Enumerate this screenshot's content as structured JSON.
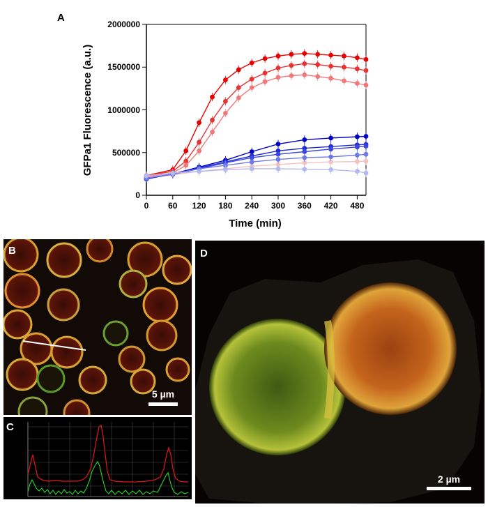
{
  "panels": {
    "a": "A",
    "b": "B",
    "c": "C",
    "d": "D"
  },
  "scale_bars": {
    "b": "5 µm",
    "d": "2 µm"
  },
  "chart_data": {
    "type": "line",
    "title": "",
    "xlabel": "Time (min)",
    "ylabel": "GFPa1 Fluorescence (a.u.)",
    "xlim": [
      0,
      500
    ],
    "ylim": [
      0,
      2000000
    ],
    "xticks": [
      "0",
      "60",
      "120",
      "180",
      "240",
      "300",
      "360",
      "420",
      "480"
    ],
    "yticks": [
      "0",
      "500000",
      "1000000",
      "1500000",
      "2000000"
    ],
    "series": [
      {
        "name": "red-1",
        "color": "#e60000",
        "x": [
          0,
          60,
          90,
          120,
          150,
          180,
          210,
          240,
          270,
          300,
          330,
          360,
          390,
          420,
          450,
          480,
          500
        ],
        "y": [
          230000,
          300000,
          520000,
          850000,
          1150000,
          1350000,
          1470000,
          1550000,
          1600000,
          1630000,
          1650000,
          1660000,
          1650000,
          1640000,
          1630000,
          1610000,
          1590000
        ]
      },
      {
        "name": "red-2",
        "color": "#e63232",
        "x": [
          0,
          60,
          90,
          120,
          150,
          180,
          210,
          240,
          270,
          300,
          330,
          360,
          390,
          420,
          450,
          480,
          500
        ],
        "y": [
          230000,
          280000,
          400000,
          620000,
          880000,
          1100000,
          1260000,
          1360000,
          1430000,
          1490000,
          1520000,
          1540000,
          1530000,
          1510000,
          1500000,
          1480000,
          1460000
        ]
      },
      {
        "name": "red-3",
        "color": "#f07878",
        "x": [
          0,
          60,
          90,
          120,
          150,
          180,
          210,
          240,
          270,
          300,
          330,
          360,
          390,
          420,
          450,
          480,
          500
        ],
        "y": [
          220000,
          260000,
          350000,
          520000,
          740000,
          960000,
          1140000,
          1260000,
          1330000,
          1380000,
          1400000,
          1410000,
          1390000,
          1370000,
          1340000,
          1310000,
          1290000
        ]
      },
      {
        "name": "pink",
        "color": "#f5c0c0",
        "x": [
          0,
          60,
          120,
          180,
          240,
          300,
          360,
          420,
          480,
          500
        ],
        "y": [
          210000,
          240000,
          280000,
          310000,
          340000,
          360000,
          380000,
          390000,
          395000,
          400000
        ]
      },
      {
        "name": "blue-1",
        "color": "#0000c8",
        "x": [
          0,
          60,
          120,
          180,
          240,
          300,
          360,
          420,
          480,
          500
        ],
        "y": [
          190000,
          250000,
          330000,
          410000,
          510000,
          600000,
          650000,
          670000,
          685000,
          690000
        ]
      },
      {
        "name": "blue-2",
        "color": "#1e28d2",
        "x": [
          0,
          60,
          120,
          180,
          240,
          300,
          360,
          420,
          480,
          500
        ],
        "y": [
          195000,
          250000,
          320000,
          390000,
          460000,
          520000,
          550000,
          570000,
          590000,
          595000
        ]
      },
      {
        "name": "blue-3",
        "color": "#3c46dc",
        "x": [
          0,
          60,
          120,
          180,
          240,
          300,
          360,
          420,
          480,
          500
        ],
        "y": [
          200000,
          245000,
          310000,
          380000,
          440000,
          480000,
          510000,
          540000,
          565000,
          575000
        ]
      },
      {
        "name": "blue-4",
        "color": "#6e78e8",
        "x": [
          0,
          60,
          120,
          180,
          240,
          300,
          360,
          420,
          480,
          500
        ],
        "y": [
          200000,
          250000,
          310000,
          350000,
          390000,
          420000,
          440000,
          450000,
          470000,
          480000
        ]
      },
      {
        "name": "lavender",
        "color": "#b4b9f0",
        "x": [
          0,
          60,
          120,
          180,
          240,
          300,
          360,
          420,
          480,
          500
        ],
        "y": [
          230000,
          260000,
          280000,
          300000,
          310000,
          310000,
          305000,
          300000,
          280000,
          260000
        ]
      }
    ]
  },
  "colors": {
    "red": "#e60000",
    "green": "#1ec81e",
    "panel_bg": "#0a0806"
  }
}
